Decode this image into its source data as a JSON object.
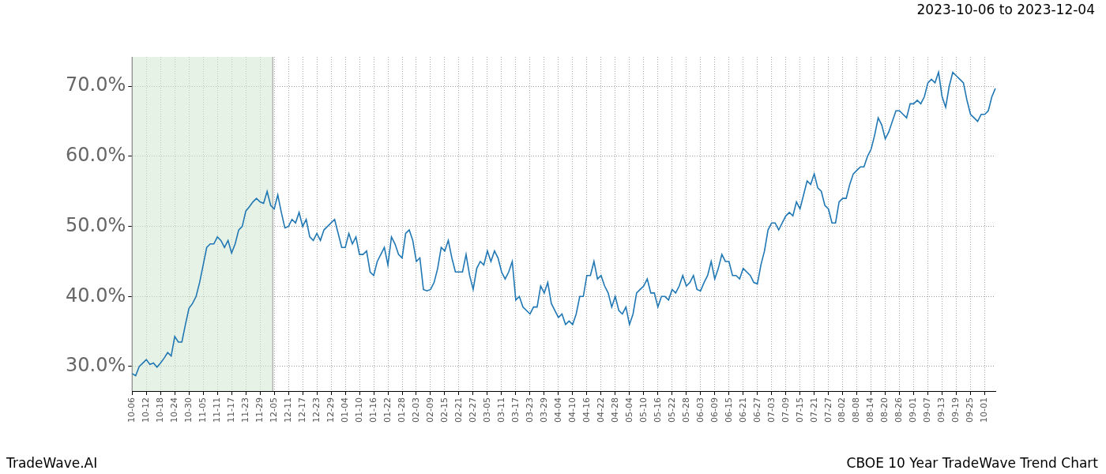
{
  "chart_data": {
    "type": "line",
    "title": "2023-10-06 to 2023-12-04",
    "caption_left": "TradeWave.AI",
    "caption_right": "CBOE 10 Year TradeWave Trend Chart",
    "color": "#1f77b4",
    "grid": true,
    "highlight": [
      0,
      39.6
    ],
    "ylim": [
      26.5,
      74.2
    ],
    "yticks": [
      {
        "value": 30,
        "label": "30.0%"
      },
      {
        "value": 40,
        "label": "40.0%"
      },
      {
        "value": 50,
        "label": "50.0%"
      },
      {
        "value": 60,
        "label": "60.0%"
      },
      {
        "value": 70,
        "label": "70.0%"
      }
    ],
    "categories": [
      "10-06",
      null,
      null,
      null,
      "10-12",
      null,
      null,
      null,
      "10-18",
      null,
      null,
      null,
      "10-24",
      null,
      null,
      null,
      "10-30",
      null,
      null,
      null,
      "11-05",
      null,
      null,
      null,
      "11-11",
      null,
      null,
      null,
      "11-17",
      null,
      null,
      null,
      "11-23",
      null,
      null,
      null,
      "11-29",
      null,
      null,
      null,
      "12-05",
      null,
      null,
      null,
      "12-11",
      null,
      null,
      null,
      "12-17",
      null,
      null,
      null,
      "12-23",
      null,
      null,
      null,
      "12-29",
      null,
      null,
      null,
      "01-04",
      null,
      null,
      null,
      "01-10",
      null,
      null,
      null,
      "01-16",
      null,
      null,
      null,
      "01-22",
      null,
      null,
      null,
      "01-28",
      null,
      null,
      null,
      "02-03",
      null,
      null,
      null,
      "02-09",
      null,
      null,
      null,
      "02-15",
      null,
      null,
      null,
      "02-21",
      null,
      null,
      null,
      "02-27",
      null,
      null,
      null,
      "03-05",
      null,
      null,
      null,
      "03-11",
      null,
      null,
      null,
      "03-17",
      null,
      null,
      null,
      "03-23",
      null,
      null,
      null,
      "03-29",
      null,
      null,
      null,
      "04-04",
      null,
      null,
      null,
      "04-10",
      null,
      null,
      null,
      "04-16",
      null,
      null,
      null,
      "04-22",
      null,
      null,
      null,
      "04-28",
      null,
      null,
      null,
      "05-04",
      null,
      null,
      null,
      "05-10",
      null,
      null,
      null,
      "05-16",
      null,
      null,
      null,
      "05-22",
      null,
      null,
      null,
      "05-28",
      null,
      null,
      null,
      "06-03",
      null,
      null,
      null,
      "06-09",
      null,
      null,
      null,
      "06-15",
      null,
      null,
      null,
      "06-21",
      null,
      null,
      null,
      "06-27",
      null,
      null,
      null,
      "07-03",
      null,
      null,
      null,
      "07-09",
      null,
      null,
      null,
      "07-15",
      null,
      null,
      null,
      "07-21",
      null,
      null,
      null,
      "07-27",
      null,
      null,
      null,
      "08-02",
      null,
      null,
      null,
      "08-08",
      null,
      null,
      null,
      "08-14",
      null,
      null,
      null,
      "08-20",
      null,
      null,
      null,
      "08-26",
      null,
      null,
      null,
      "09-01",
      null,
      null,
      null,
      "09-07",
      null,
      null,
      null,
      "09-13",
      null,
      null,
      null,
      "09-19",
      null,
      null,
      null,
      "09-25",
      null,
      null,
      null,
      "10-01",
      null,
      null,
      null
    ],
    "values": [
      29,
      28.7,
      30,
      30.5,
      31,
      30.3,
      30.5,
      29.9,
      30.5,
      31.2,
      32,
      31.5,
      34.3,
      33.5,
      33.5,
      36,
      38.3,
      39,
      40,
      42,
      44.5,
      47,
      47.5,
      47.5,
      48.5,
      48,
      47,
      48,
      46.2,
      47.5,
      49.5,
      50,
      52.2,
      52.8,
      53.5,
      54,
      53.5,
      53.3,
      55,
      53,
      52.5,
      54.5,
      52,
      49.8,
      50,
      51,
      50.5,
      52,
      50,
      51,
      48.5,
      48,
      49,
      48,
      49.5,
      50,
      50.5,
      51,
      49,
      47,
      47,
      49,
      47.5,
      48.5,
      46,
      46,
      46.5,
      43.5,
      43,
      45,
      46,
      47,
      44.5,
      48.5,
      47.5,
      46,
      45.5,
      49,
      49.5,
      48,
      45,
      45.5,
      41,
      40.8,
      41,
      42,
      44,
      47,
      46.5,
      48,
      45.5,
      43.5,
      43.5,
      43.5,
      46,
      43,
      41,
      44,
      45,
      44.5,
      46.5,
      45,
      46.5,
      45.5,
      43.5,
      42.5,
      43.5,
      45,
      39.5,
      40,
      38.5,
      38,
      37.5,
      38.5,
      38.5,
      41.5,
      40.5,
      42,
      39,
      38,
      37,
      37.5,
      36,
      36.5,
      36,
      37.5,
      40,
      40,
      43,
      43,
      45,
      42.5,
      43,
      41.5,
      40.5,
      38.5,
      40,
      38,
      37.5,
      38.5,
      36,
      37.5,
      40.5,
      41,
      41.5,
      42.5,
      40.5,
      40.5,
      38.5,
      40,
      40,
      39.5,
      41,
      40.5,
      41.5,
      43,
      41.5,
      42,
      43,
      41,
      40.8,
      42,
      43,
      45,
      42.5,
      44,
      46,
      45,
      45,
      43,
      43,
      42.5,
      44,
      43.5,
      43,
      42,
      41.8,
      44.5,
      46.5,
      49.5,
      50.5,
      50.5,
      49.5,
      50.5,
      51.5,
      52,
      51.5,
      53.5,
      52.5,
      54.5,
      56.5,
      56,
      57.5,
      55.5,
      55,
      53,
      52.5,
      50.5,
      50.5,
      53.5,
      54,
      54,
      56,
      57.5,
      58,
      58.5,
      58.5,
      60,
      61,
      63,
      65.5,
      64.5,
      62.5,
      63.5,
      65,
      66.5,
      66.5,
      66,
      65.5,
      67.5,
      67.5,
      68,
      67.5,
      68.5,
      70.5,
      71,
      70.5,
      72,
      68.5,
      67,
      70,
      72,
      71.5,
      71,
      70.5,
      68,
      66,
      65.5,
      65,
      66,
      66,
      66.5,
      68.5,
      69.7
    ]
  }
}
